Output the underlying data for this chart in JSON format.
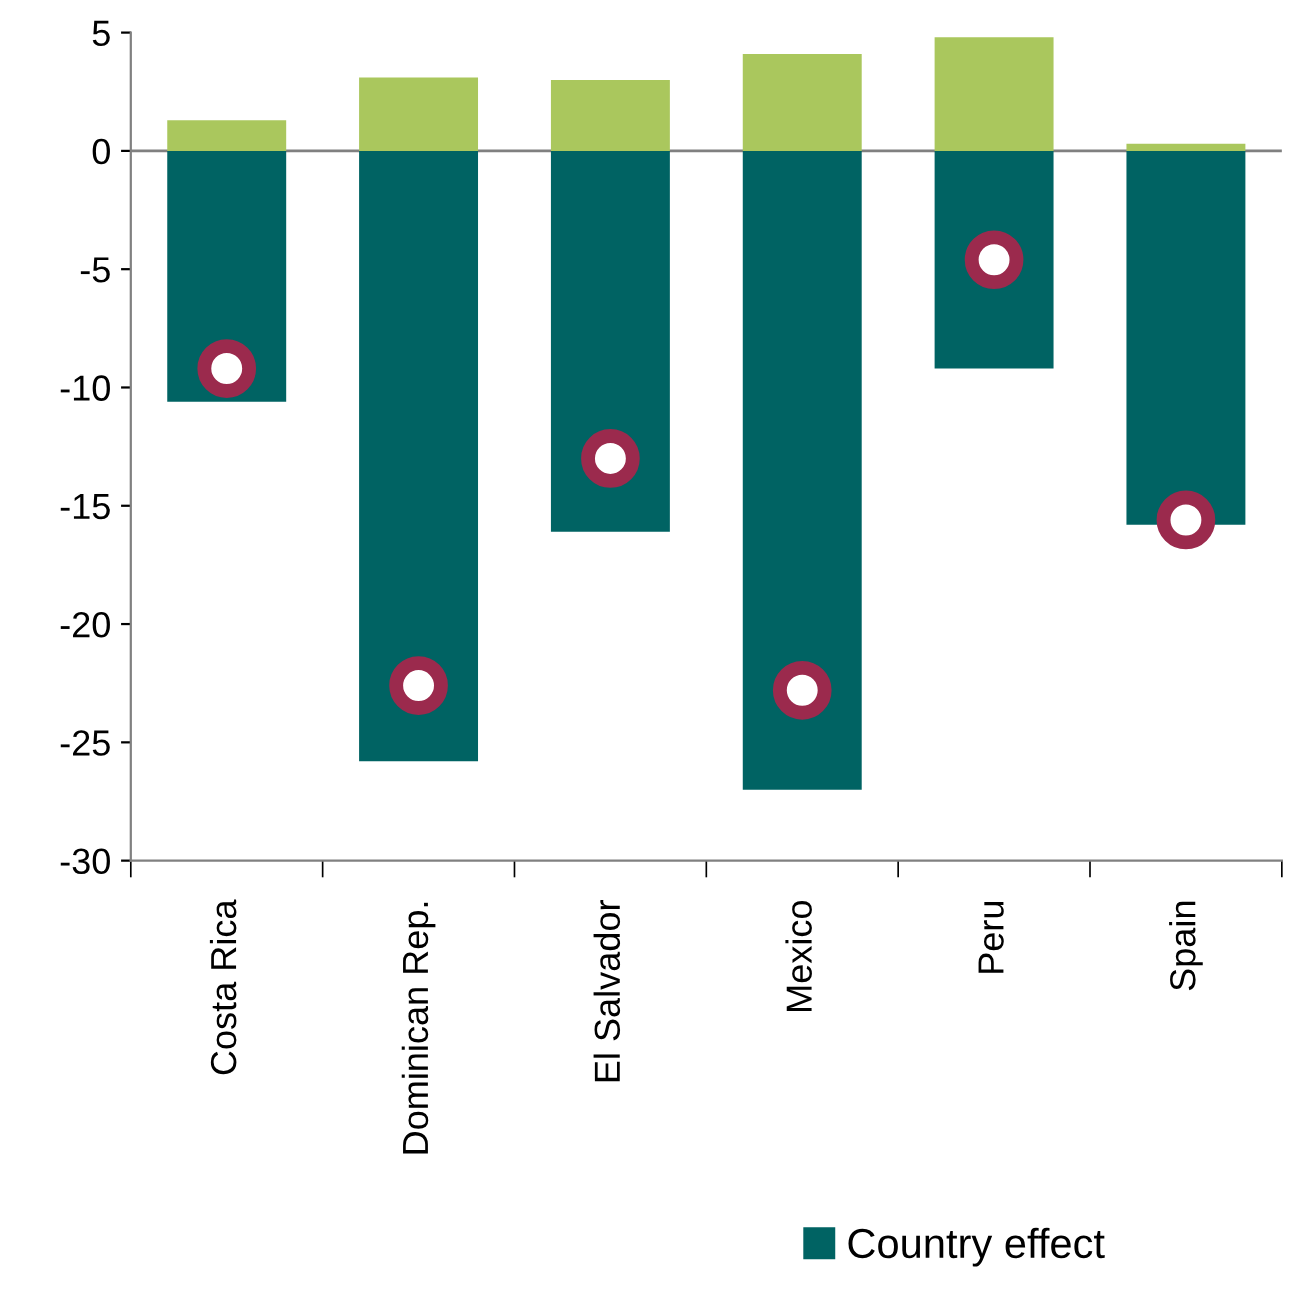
{
  "chart_data": {
    "type": "bar",
    "stacked": true,
    "categories": [
      "Costa Rica",
      "Dominican Rep.",
      "El Salvador",
      "Mexico",
      "Peru",
      "Spain"
    ],
    "series": [
      {
        "name": "Country effect",
        "color": "#006363",
        "values": [
          -10.6,
          -25.8,
          -16.1,
          -27.0,
          -9.2,
          -15.8
        ]
      },
      {
        "color": "#aac75d",
        "values": [
          1.3,
          3.1,
          3.0,
          4.1,
          4.8,
          0.3
        ]
      },
      {
        "type": "scatter",
        "color": "#9b2a4d",
        "marker": "circle",
        "x": [
          "Costa Rica",
          "Dominican Rep.",
          "El Salvador",
          "Mexico",
          "Peru",
          "Spain"
        ],
        "values": [
          -9.2,
          -22.6,
          -13.0,
          -22.8,
          -4.6,
          -15.6
        ]
      }
    ],
    "ref_lines": [
      {
        "axis": "y",
        "value": 0,
        "color": "#808080"
      }
    ],
    "ylim": [
      -30,
      5
    ],
    "yticks": [
      -30,
      -25,
      -20,
      -15,
      -10,
      -5,
      0,
      5
    ],
    "legend": "bottom",
    "grid": false
  }
}
